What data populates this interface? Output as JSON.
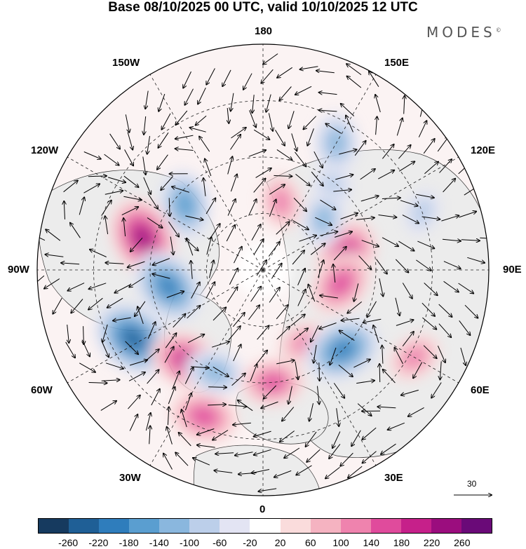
{
  "title": "Base 08/10/2025 00 UTC, valid 10/10/2025 12 UTC",
  "logo": "MODES",
  "logo_mark": "©",
  "longitude_labels": {
    "top": "180",
    "bottom": "0",
    "left": "90W",
    "right": "90E",
    "upper_left_1": "150W",
    "upper_left_2": "120W",
    "upper_right_1": "150E",
    "upper_right_2": "120E",
    "lower_left_1": "60W",
    "lower_left_2": "30W",
    "lower_right_1": "60E",
    "lower_right_2": "30E"
  },
  "reference_vector": "30",
  "colorbar": {
    "colors": [
      "#163a5f",
      "#1f5f96",
      "#2f7dbc",
      "#5a9ed0",
      "#8ab7de",
      "#bccfea",
      "#e3e4f3",
      "#ffffff",
      "#fadcdc",
      "#f5b3c1",
      "#ef83ae",
      "#e04b9c",
      "#c6208a",
      "#9b0d7e",
      "#6a0a78"
    ],
    "ticks": [
      "-260",
      "-220",
      "-180",
      "-140",
      "-100",
      "-60",
      "-20",
      "20",
      "60",
      "100",
      "140",
      "180",
      "220",
      "260"
    ]
  },
  "anomaly_centers": [
    {
      "lon": 100,
      "colat": 30,
      "value": 180,
      "label": "pink over East Siberia"
    },
    {
      "lon": 140,
      "colat": 38,
      "value": -80,
      "label": "blue over Okhotsk"
    },
    {
      "lon": 150,
      "colat": 52,
      "value": -120,
      "label": "blue Pacific"
    },
    {
      "lon": -130,
      "colat": 36,
      "value": -160,
      "label": "blue Alaska"
    },
    {
      "lon": -105,
      "colat": 44,
      "value": 220,
      "label": "pink Canada"
    },
    {
      "lon": -80,
      "colat": 34,
      "value": -200,
      "label": "blue Hudson"
    },
    {
      "lon": -62,
      "colat": 52,
      "value": -230,
      "label": "blue Atlantic"
    },
    {
      "lon": -40,
      "colat": 42,
      "value": 180,
      "label": "pink Greenland Sea"
    },
    {
      "lon": -22,
      "colat": 56,
      "value": 160,
      "label": "pink North Atlantic"
    },
    {
      "lon": -25,
      "colat": 40,
      "value": -120,
      "label": "blue Iceland"
    },
    {
      "lon": 5,
      "colat": 40,
      "value": 140,
      "label": "pink Scandinavia"
    },
    {
      "lon": 30,
      "colat": 30,
      "value": 100,
      "label": "pink Barents"
    },
    {
      "lon": 45,
      "colat": 40,
      "value": -200,
      "label": "blue Ural"
    },
    {
      "lon": 80,
      "colat": 28,
      "value": 160,
      "label": "pink Siberia"
    },
    {
      "lon": 130,
      "colat": 28,
      "value": -100,
      "label": "blue Lena"
    },
    {
      "lon": 165,
      "colat": 25,
      "value": 100,
      "label": "pink Chukotka"
    },
    {
      "lon": 60,
      "colat": 62,
      "value": 100,
      "label": "pink Central Asia"
    },
    {
      "lon": 110,
      "colat": 60,
      "value": -60,
      "label": "blue China"
    }
  ]
}
